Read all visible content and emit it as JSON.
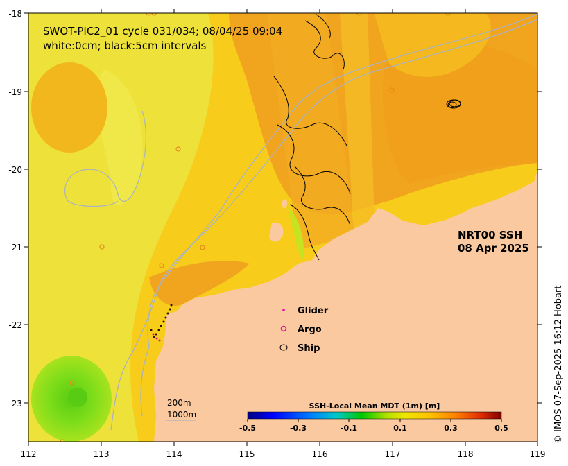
{
  "map": {
    "title_line1": "SWOT-PIC2_01 cycle 031/034; 08/04/25 09:04",
    "title_line2": "white:0cm; black:5cm intervals",
    "product_line1": "NRT00 SSH",
    "product_line2": "08 Apr 2025",
    "x_ticks": [
      "112",
      "113",
      "114",
      "115",
      "116",
      "117",
      "118",
      "119"
    ],
    "y_ticks": [
      "-18",
      "-19",
      "-20",
      "-21",
      "-22",
      "-23"
    ],
    "credit": "© IMOS 07-Sep-2025 16:12 Hobart",
    "colors": {
      "land": "#fbc9a0",
      "ssh_low": "#ece23a",
      "ssh_mid": "#f7cc1a",
      "ssh_high": "#f1a51f",
      "ssh_green": "#7ddd1a",
      "bathymetry": "#a9b3c3"
    }
  },
  "legend": {
    "items": [
      {
        "label": "Glider",
        "symbol": "glider-dot",
        "color": "#e0119a"
      },
      {
        "label": "Argo",
        "symbol": "argo-ring",
        "color": "#e0119a"
      },
      {
        "label": "Ship",
        "symbol": "ship-ring",
        "color": "#000000"
      }
    ]
  },
  "scale_bar": {
    "label_200": "200m",
    "label_1000": "1000m"
  },
  "colorbar": {
    "title": "SSH-Local Mean MDT (1m) [m]",
    "ticks": [
      "-0.5",
      "-0.3",
      "-0.1",
      "0.1",
      "0.3",
      "0.5"
    ],
    "range": [
      -0.5,
      0.5
    ],
    "colors": [
      "#00007f",
      "#0000ff",
      "#0080ff",
      "#00c8c8",
      "#00c800",
      "#80d800",
      "#e8e800",
      "#ffc800",
      "#ff8000",
      "#e03000",
      "#7f0000"
    ]
  }
}
